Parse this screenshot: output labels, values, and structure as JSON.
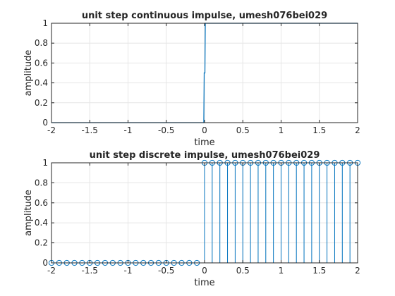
{
  "colors": {
    "background": "#ffffff",
    "axes_frame": "#262626",
    "grid": "#e6e6e6",
    "series": "#0072bd"
  },
  "chart_data": [
    {
      "type": "line",
      "title": "unit step continuous impulse, umesh076bei029",
      "xlabel": "time",
      "ylabel": "amplitude",
      "xlim": [
        -2,
        2
      ],
      "ylim": [
        0,
        1
      ],
      "grid": true,
      "xticks": [
        "-2",
        "-1.5",
        "-1",
        "-0.5",
        "0",
        "0.5",
        "1",
        "1.5",
        "2"
      ],
      "yticks": [
        "0",
        "0.2",
        "0.4",
        "0.6",
        "0.8",
        "1"
      ],
      "x": [
        -2,
        -0.02,
        -0.01,
        -0.005,
        0,
        0.005,
        0.01,
        2
      ],
      "y": [
        0,
        0,
        0,
        0.5,
        0.5,
        0.5,
        1,
        1
      ]
    },
    {
      "type": "stem",
      "title": "unit step discrete impulse, umesh076bei029",
      "xlabel": "time",
      "ylabel": "amplitude",
      "xlim": [
        -2,
        2
      ],
      "ylim": [
        0,
        1
      ],
      "grid": true,
      "marker": "circle",
      "xticks": [
        "-2",
        "-1.5",
        "-1",
        "-0.5",
        "0",
        "0.5",
        "1",
        "1.5",
        "2"
      ],
      "yticks": [
        "0",
        "0.2",
        "0.4",
        "0.6",
        "0.8",
        "1"
      ],
      "x": [
        -2,
        -1.9,
        -1.8,
        -1.7,
        -1.6,
        -1.5,
        -1.4,
        -1.3,
        -1.2,
        -1.1,
        -1,
        -0.9,
        -0.8,
        -0.7,
        -0.6,
        -0.5,
        -0.4,
        -0.3,
        -0.2,
        -0.1,
        0,
        0.1,
        0.2,
        0.3,
        0.4,
        0.5,
        0.6,
        0.7,
        0.8,
        0.9,
        1,
        1.1,
        1.2,
        1.3,
        1.4,
        1.5,
        1.6,
        1.7,
        1.8,
        1.9,
        2
      ],
      "y": [
        0,
        0,
        0,
        0,
        0,
        0,
        0,
        0,
        0,
        0,
        0,
        0,
        0,
        0,
        0,
        0,
        0,
        0,
        0,
        0,
        1,
        1,
        1,
        1,
        1,
        1,
        1,
        1,
        1,
        1,
        1,
        1,
        1,
        1,
        1,
        1,
        1,
        1,
        1,
        1,
        1
      ]
    }
  ]
}
